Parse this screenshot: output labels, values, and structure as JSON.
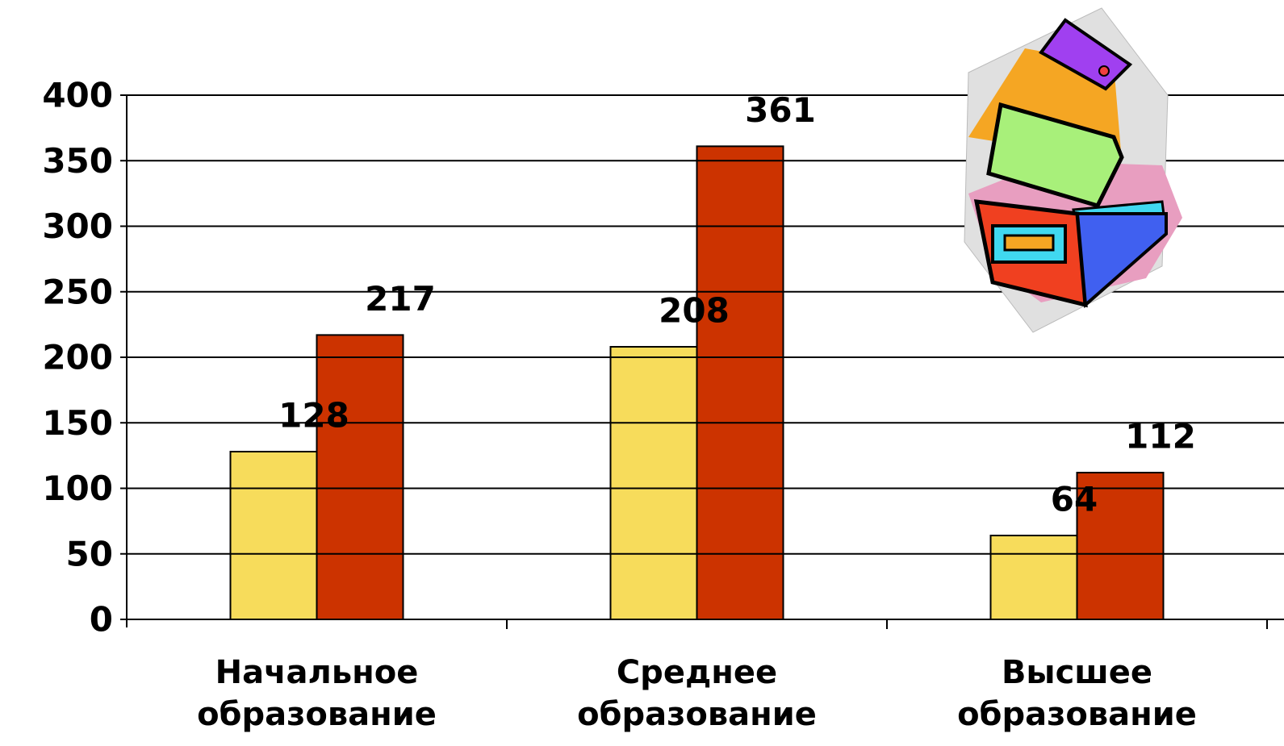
{
  "chart_data": {
    "type": "bar",
    "categories": [
      "Начальное образование",
      "Среднее образование",
      "Высшее образование"
    ],
    "series": [
      {
        "color": "#f7dc5b",
        "values": [
          128,
          208,
          64
        ]
      },
      {
        "color": "#cc3300",
        "values": [
          217,
          361,
          112
        ]
      }
    ],
    "ylim": [
      0,
      400
    ],
    "yticks": [
      0,
      50,
      100,
      150,
      200,
      250,
      300,
      350,
      400
    ],
    "grid": true
  }
}
